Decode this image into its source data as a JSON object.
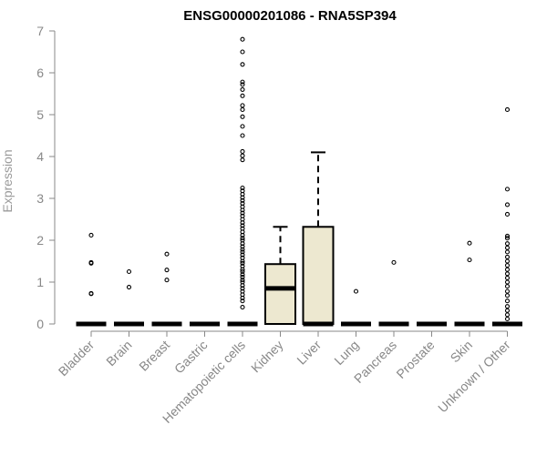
{
  "chart_data": {
    "type": "boxplot",
    "title": "ENSG00000201086 - RNA5SP394",
    "ylabel": "Expression",
    "xlabel": "",
    "ylim": [
      0,
      7
    ],
    "yticks": [
      0,
      1,
      2,
      3,
      4,
      5,
      6,
      7
    ],
    "grid": false,
    "box_fill": "#ede8d0",
    "categories": [
      "Bladder",
      "Brain",
      "Breast",
      "Gastric",
      "Hematopoietic cells",
      "Kidney",
      "Liver",
      "Lung",
      "Pancreas",
      "Prostate",
      "Skin",
      "Unknown / Other"
    ],
    "boxes": [
      {
        "q1": 0,
        "median": 0,
        "q3": 0,
        "whisker_low": 0,
        "whisker_high": 0,
        "outliers": [
          0.72,
          0.73,
          1.45,
          1.47,
          2.12
        ]
      },
      {
        "q1": 0,
        "median": 0,
        "q3": 0,
        "whisker_low": 0,
        "whisker_high": 0,
        "outliers": [
          0.88,
          1.25
        ]
      },
      {
        "q1": 0,
        "median": 0,
        "q3": 0,
        "whisker_low": 0,
        "whisker_high": 0,
        "outliers": [
          1.05,
          1.29,
          1.67
        ]
      },
      {
        "q1": 0,
        "median": 0,
        "q3": 0,
        "whisker_low": 0,
        "whisker_high": 0,
        "outliers": []
      },
      {
        "q1": 0,
        "median": 0,
        "q3": 0,
        "whisker_low": 0,
        "whisker_high": 0,
        "outliers": [
          0.4,
          0.55,
          0.62,
          0.7,
          0.78,
          0.85,
          0.92,
          1.0,
          1.05,
          1.12,
          1.18,
          1.25,
          1.3,
          1.38,
          1.45,
          1.5,
          1.58,
          1.65,
          1.72,
          1.78,
          1.85,
          1.92,
          2.0,
          2.05,
          2.12,
          2.2,
          2.28,
          2.35,
          2.42,
          2.5,
          2.58,
          2.65,
          2.72,
          2.8,
          2.88,
          2.95,
          3.02,
          3.1,
          3.18,
          3.25,
          3.92,
          4.02,
          4.12,
          4.5,
          4.72,
          4.95,
          5.12,
          5.22,
          5.45,
          5.6,
          5.72,
          5.78,
          6.2,
          6.5,
          6.8
        ]
      },
      {
        "q1": 0,
        "median": 0.85,
        "q3": 1.43,
        "whisker_low": 0,
        "whisker_high": 2.32,
        "outliers": []
      },
      {
        "q1": 0,
        "median": 0,
        "q3": 2.32,
        "whisker_low": 0,
        "whisker_high": 4.1,
        "outliers": []
      },
      {
        "q1": 0,
        "median": 0,
        "q3": 0,
        "whisker_low": 0,
        "whisker_high": 0,
        "outliers": [
          0.78
        ]
      },
      {
        "q1": 0,
        "median": 0,
        "q3": 0,
        "whisker_low": 0,
        "whisker_high": 0,
        "outliers": [
          1.47
        ]
      },
      {
        "q1": 0,
        "median": 0,
        "q3": 0,
        "whisker_low": 0,
        "whisker_high": 0,
        "outliers": []
      },
      {
        "q1": 0,
        "median": 0,
        "q3": 0,
        "whisker_low": 0,
        "whisker_high": 0,
        "outliers": [
          1.53,
          1.93
        ]
      },
      {
        "q1": 0,
        "median": 0,
        "q3": 0,
        "whisker_low": 0,
        "whisker_high": 0,
        "outliers": [
          0.12,
          0.22,
          0.32,
          0.42,
          0.55,
          0.68,
          0.78,
          0.9,
          1.0,
          1.1,
          1.2,
          1.3,
          1.4,
          1.5,
          1.6,
          1.72,
          1.82,
          1.92,
          2.05,
          2.1,
          2.62,
          2.85,
          3.22,
          5.12
        ]
      }
    ]
  }
}
